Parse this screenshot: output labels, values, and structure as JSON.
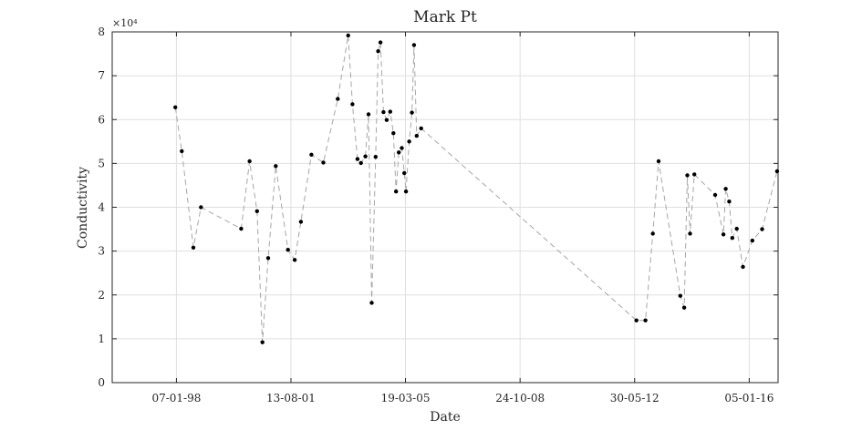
{
  "chart_data": {
    "type": "scatter",
    "title": "Mark Pt",
    "xlabel": "Date",
    "ylabel": "Conductivity",
    "y_multiplier_label": "×10⁴",
    "ylim": [
      0,
      8
    ],
    "xlim": [
      "1996-01-01",
      "2016-12-01"
    ],
    "y_ticks": [
      0,
      1,
      2,
      3,
      4,
      5,
      6,
      7,
      8
    ],
    "x_ticks": [
      {
        "date": "1998-01-07",
        "label": "07-01-98"
      },
      {
        "date": "2001-08-13",
        "label": "13-08-01"
      },
      {
        "date": "2005-03-19",
        "label": "19-03-05"
      },
      {
        "date": "2008-10-24",
        "label": "24-10-08"
      },
      {
        "date": "2012-05-30",
        "label": "30-05-12"
      },
      {
        "date": "2016-01-05",
        "label": "05-01-16"
      }
    ],
    "grid": true,
    "line_style": "dashed gray connecting markers",
    "marker_color": "#000000",
    "line_color": "#a6a6a6",
    "series": [
      {
        "points": [
          [
            "1997-12-25",
            6.28
          ],
          [
            "1998-03-10",
            5.28
          ],
          [
            "1998-07-20",
            3.08
          ],
          [
            "1998-10-15",
            4.0
          ],
          [
            "2000-01-20",
            3.51
          ],
          [
            "2000-04-25",
            5.05
          ],
          [
            "2000-07-20",
            3.91
          ],
          [
            "2000-09-20",
            0.92
          ],
          [
            "2000-11-25",
            2.84
          ],
          [
            "2001-02-20",
            4.94
          ],
          [
            "2001-07-10",
            3.03
          ],
          [
            "2001-09-25",
            2.8
          ],
          [
            "2001-12-05",
            3.67
          ],
          [
            "2002-04-05",
            5.2
          ],
          [
            "2002-08-20",
            5.02
          ],
          [
            "2003-02-01",
            6.47
          ],
          [
            "2003-06-01",
            7.92
          ],
          [
            "2003-07-20",
            6.35
          ],
          [
            "2003-09-15",
            5.1
          ],
          [
            "2003-10-25",
            5.01
          ],
          [
            "2003-12-15",
            5.16
          ],
          [
            "2004-01-20",
            6.12
          ],
          [
            "2004-02-25",
            1.82
          ],
          [
            "2004-04-10",
            5.15
          ],
          [
            "2004-05-10",
            7.56
          ],
          [
            "2004-06-05",
            7.76
          ],
          [
            "2004-07-10",
            6.17
          ],
          [
            "2004-08-15",
            5.99
          ],
          [
            "2004-09-25",
            6.18
          ],
          [
            "2004-11-01",
            5.69
          ],
          [
            "2004-12-01",
            4.36
          ],
          [
            "2005-01-01",
            5.25
          ],
          [
            "2005-02-05",
            5.35
          ],
          [
            "2005-03-05",
            4.78
          ],
          [
            "2005-03-25",
            4.36
          ],
          [
            "2005-05-01",
            5.5
          ],
          [
            "2005-06-01",
            6.16
          ],
          [
            "2005-06-25",
            7.7
          ],
          [
            "2005-07-25",
            5.63
          ],
          [
            "2005-09-15",
            5.8
          ],
          [
            "2012-06-20",
            1.42
          ],
          [
            "2012-10-01",
            1.42
          ],
          [
            "2012-12-25",
            3.4
          ],
          [
            "2013-03-01",
            5.05
          ],
          [
            "2013-11-05",
            1.98
          ],
          [
            "2013-12-20",
            1.71
          ],
          [
            "2014-01-25",
            4.73
          ],
          [
            "2014-02-25",
            3.4
          ],
          [
            "2014-04-15",
            4.75
          ],
          [
            "2014-12-10",
            4.28
          ],
          [
            "2015-03-15",
            3.38
          ],
          [
            "2015-04-10",
            4.42
          ],
          [
            "2015-05-20",
            4.13
          ],
          [
            "2015-06-25",
            3.3
          ],
          [
            "2015-08-15",
            3.51
          ],
          [
            "2015-10-25",
            2.64
          ],
          [
            "2016-02-10",
            3.24
          ],
          [
            "2016-06-01",
            3.5
          ],
          [
            "2016-11-20",
            4.82
          ]
        ]
      }
    ]
  }
}
